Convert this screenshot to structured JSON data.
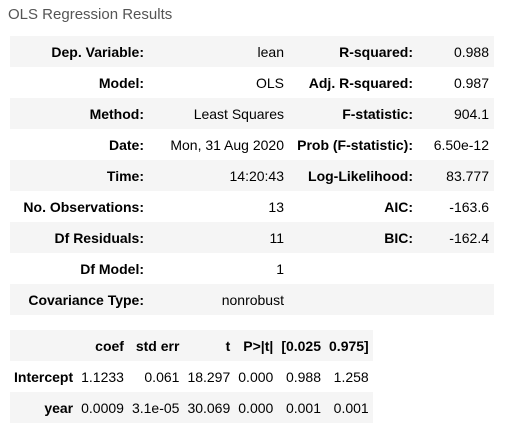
{
  "caption": "OLS Regression Results",
  "summary_rows": [
    {
      "l1": "Dep. Variable:",
      "v1": "lean",
      "l2": "R-squared:",
      "v2": "0.988"
    },
    {
      "l1": "Model:",
      "v1": "OLS",
      "l2": "Adj. R-squared:",
      "v2": "0.987"
    },
    {
      "l1": "Method:",
      "v1": "Least Squares",
      "l2": "F-statistic:",
      "v2": "904.1"
    },
    {
      "l1": "Date:",
      "v1": "Mon, 31 Aug 2020",
      "l2": "Prob (F-statistic):",
      "v2": "6.50e-12"
    },
    {
      "l1": "Time:",
      "v1": "14:20:43",
      "l2": "Log-Likelihood:",
      "v2": "83.777"
    },
    {
      "l1": "No. Observations:",
      "v1": "13",
      "l2": "AIC:",
      "v2": "-163.6"
    },
    {
      "l1": "Df Residuals:",
      "v1": "11",
      "l2": "BIC:",
      "v2": "-162.4"
    },
    {
      "l1": "Df Model:",
      "v1": "1",
      "l2": "",
      "v2": ""
    },
    {
      "l1": "Covariance Type:",
      "v1": "nonrobust",
      "l2": "",
      "v2": ""
    }
  ],
  "coef_headers": [
    "",
    "coef",
    "std err",
    "t",
    "P>|t|",
    "[0.025",
    "0.975]"
  ],
  "coef_rows": [
    {
      "name": "Intercept",
      "coef": "1.1233",
      "stderr": "0.061",
      "t": "18.297",
      "p": "0.000",
      "lo": "0.988",
      "hi": "1.258"
    },
    {
      "name": "year",
      "coef": "0.0009",
      "stderr": "3.1e-05",
      "t": "30.069",
      "p": "0.000",
      "lo": "0.001",
      "hi": "0.001"
    }
  ]
}
